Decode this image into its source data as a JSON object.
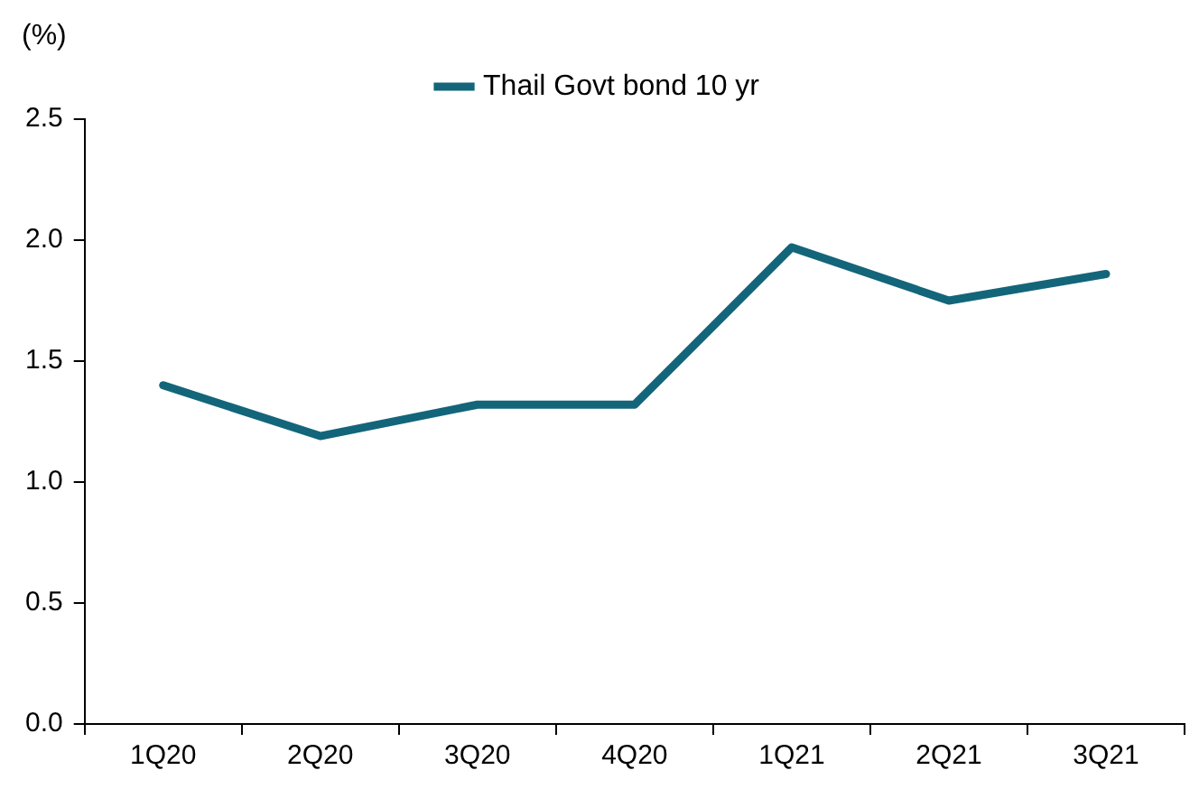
{
  "chart_data": {
    "type": "line",
    "ylabel": "(%)",
    "categories": [
      "1Q20",
      "2Q20",
      "3Q20",
      "4Q20",
      "1Q21",
      "2Q21",
      "3Q21"
    ],
    "series": [
      {
        "name": "Thail Govt bond 10 yr",
        "color": "#13657a",
        "values": [
          1.4,
          1.19,
          1.32,
          1.32,
          1.97,
          1.75,
          1.86
        ]
      }
    ],
    "ylim": [
      0,
      2.5
    ],
    "yticks": [
      {
        "value": 0,
        "label": "0.0"
      },
      {
        "value": 0.5,
        "label": "0.5"
      },
      {
        "value": 1,
        "label": "1.0"
      },
      {
        "value": 1.5,
        "label": "1.5"
      },
      {
        "value": 2,
        "label": "2.0"
      },
      {
        "value": 2.5,
        "label": "2.5"
      }
    ],
    "grid": false,
    "legend": "top",
    "marker": "none",
    "line_style": "solid"
  }
}
